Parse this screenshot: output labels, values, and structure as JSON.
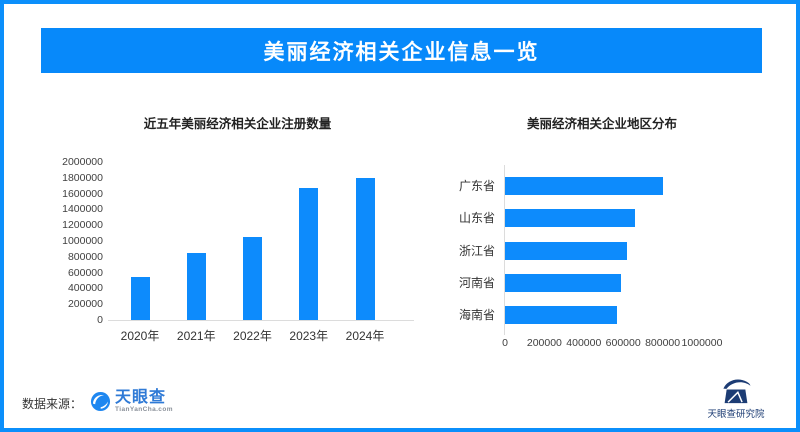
{
  "banner": {
    "title": "美丽经济相关企业信息一览"
  },
  "footer": {
    "source_label": "数据来源：",
    "tianyancha": {
      "name": "天眼查",
      "domain_text": "TianYanCha.com"
    },
    "institute": {
      "name": "天眼查研究院"
    }
  },
  "colors": {
    "accent": "#0789fa",
    "border": "#0b8ffb",
    "tianyancha_blue": "#2f7ad6",
    "institute_navy": "#1c3c74"
  },
  "chart_data": [
    {
      "type": "bar",
      "title": "近五年美丽经济相关企业注册数量",
      "categories": [
        "2020年",
        "2021年",
        "2022年",
        "2023年",
        "2024年"
      ],
      "values": [
        540000,
        850000,
        1050000,
        1670000,
        1800000
      ],
      "ylim": [
        0,
        2000000
      ],
      "yticks": [
        0,
        200000,
        400000,
        600000,
        800000,
        1000000,
        1200000,
        1400000,
        1600000,
        1800000,
        2000000
      ],
      "xlabel": "",
      "ylabel": "",
      "grid": false,
      "legend": false,
      "bar_color": "#0d8bfc"
    },
    {
      "type": "bar-horizontal",
      "title": "美丽经济相关企业地区分布",
      "categories": [
        "广东省",
        "山东省",
        "浙江省",
        "河南省",
        "海南省"
      ],
      "values": [
        800000,
        660000,
        620000,
        590000,
        570000
      ],
      "xlim": [
        0,
        1000000
      ],
      "xticks": [
        0,
        200000,
        400000,
        600000,
        800000,
        1000000
      ],
      "xlabel": "",
      "ylabel": "",
      "grid": false,
      "legend": false,
      "bar_color": "#0d8bfc"
    }
  ]
}
